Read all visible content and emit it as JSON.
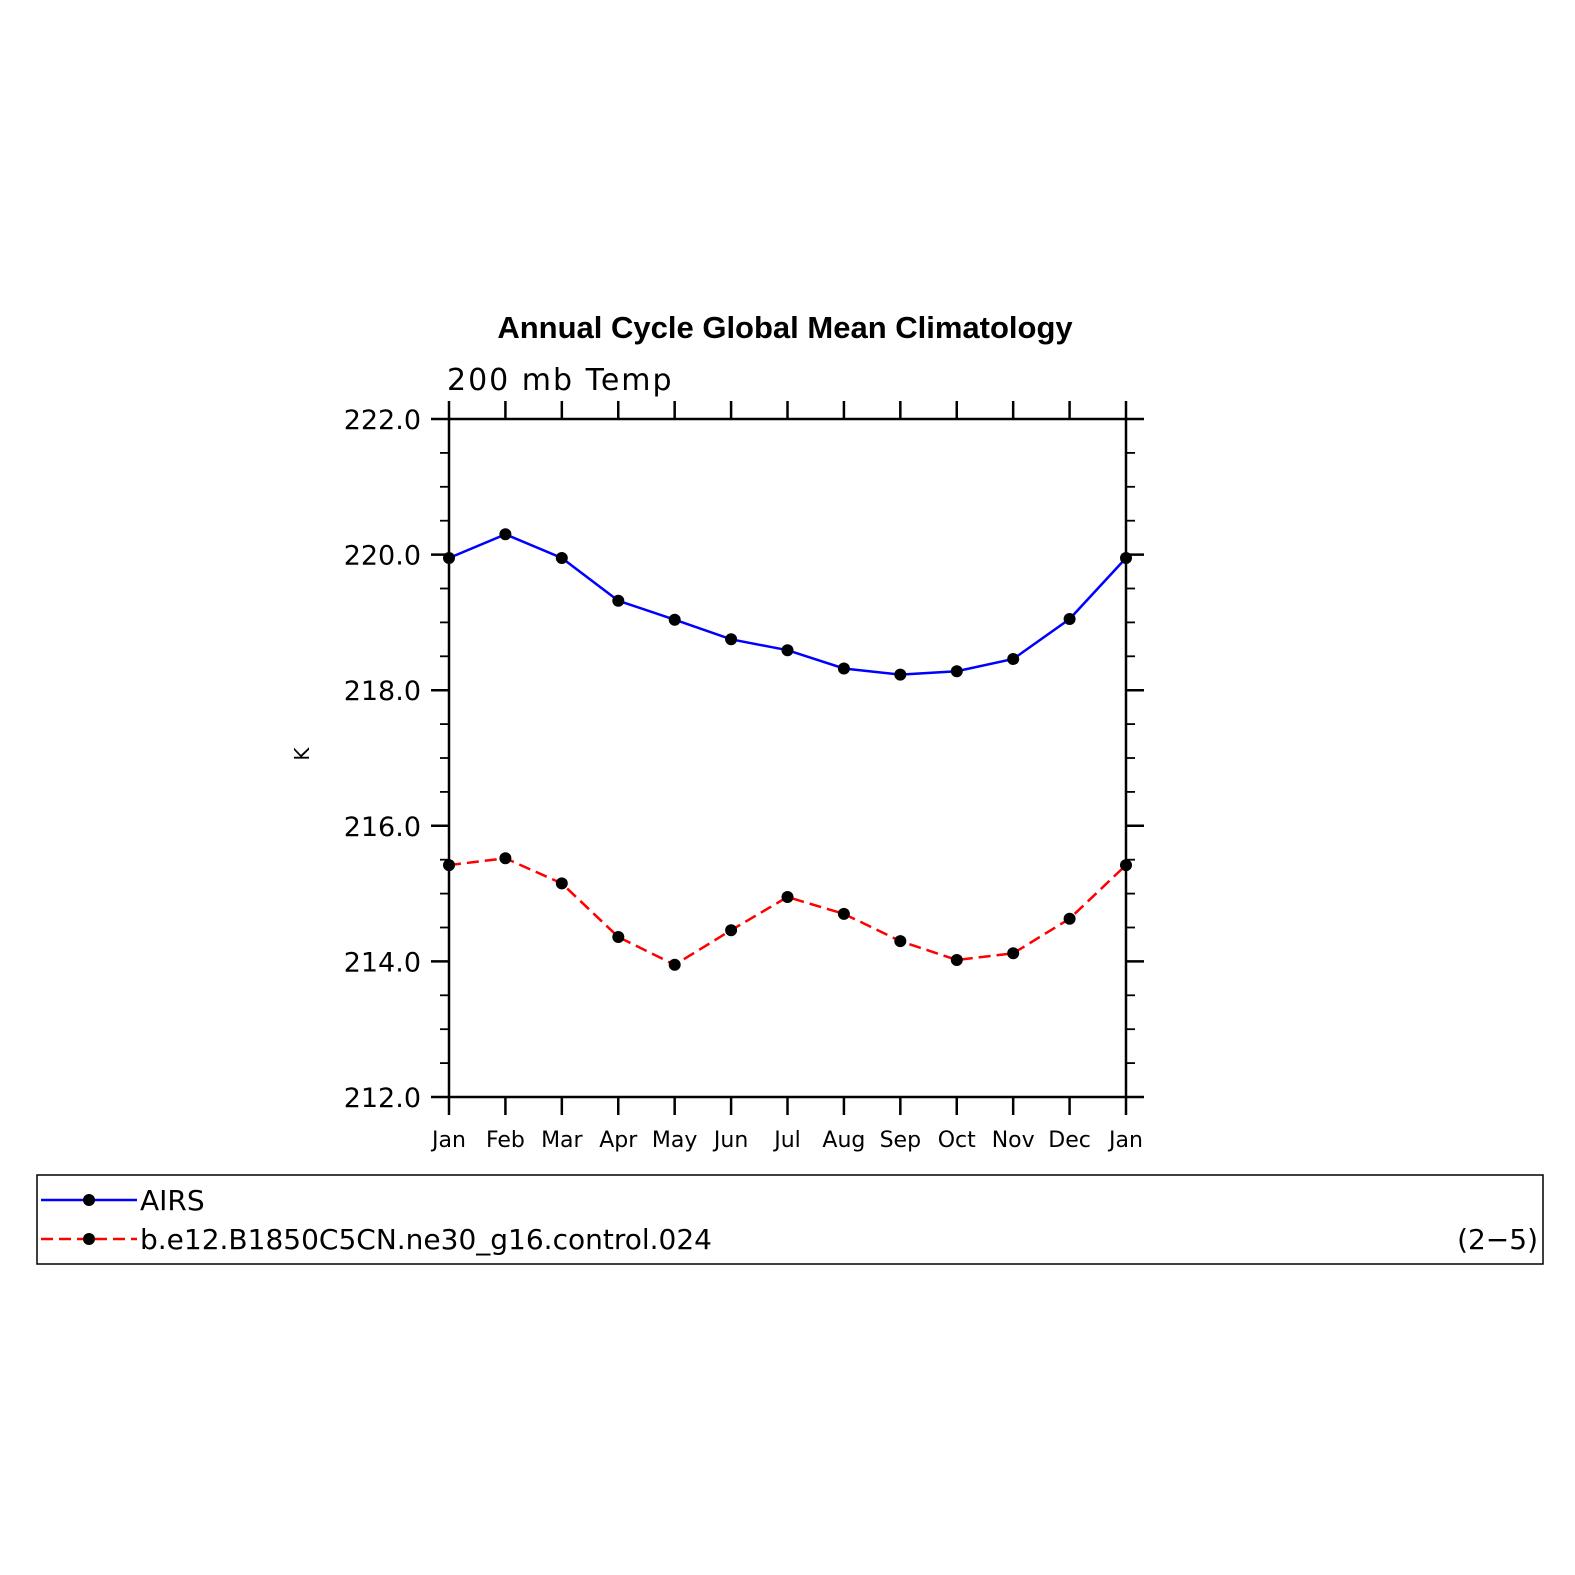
{
  "chart_data": {
    "type": "line",
    "title": "Annual Cycle Global Mean Climatology",
    "subtitle": "200 mb Temp",
    "ylabel": "K",
    "xlabel": "",
    "categories": [
      "Jan",
      "Feb",
      "Mar",
      "Apr",
      "May",
      "Jun",
      "Jul",
      "Aug",
      "Sep",
      "Oct",
      "Nov",
      "Dec",
      "Jan"
    ],
    "ylim": [
      212.0,
      222.0
    ],
    "yticks": [
      "212.0",
      "214.0",
      "216.0",
      "218.0",
      "220.0",
      "222.0"
    ],
    "grid": false,
    "legend_position": "bottom",
    "panel_label": "(2−5)",
    "series": [
      {
        "name": "AIRS",
        "color": "#0000ff",
        "style": "solid",
        "values": [
          219.95,
          220.3,
          219.95,
          219.32,
          219.04,
          218.75,
          218.59,
          218.32,
          218.23,
          218.28,
          218.46,
          219.05,
          219.95
        ]
      },
      {
        "name": "b.e12.B1850C5CN.ne30_g16.control.024",
        "color": "#ff0000",
        "style": "dashed",
        "values": [
          215.42,
          215.52,
          215.15,
          214.36,
          213.95,
          214.46,
          214.95,
          214.7,
          214.3,
          214.02,
          214.12,
          214.63,
          215.42
        ]
      }
    ]
  }
}
